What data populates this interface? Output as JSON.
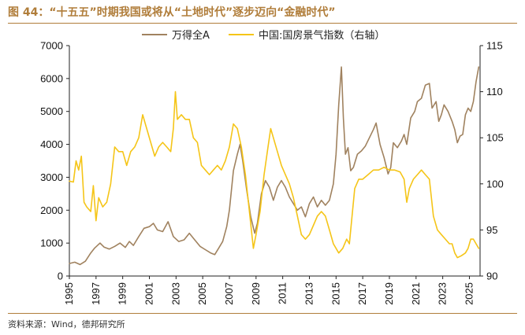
{
  "figure": {
    "title": "图 44：“十五五”时期我国或将从“土地时代”逐步迈向“金融时代”",
    "source": "资料来源：Wind，德邦研究所"
  },
  "colors": {
    "accent": "#b07d3a",
    "series_a": "#a0825f",
    "series_b": "#f5c518",
    "axis": "#222222"
  },
  "chart_data": {
    "type": "line",
    "xlim": [
      1995,
      2025.8
    ],
    "x_ticks": [
      "1995",
      "1997",
      "1999",
      "2001",
      "2003",
      "2005",
      "2007",
      "2009",
      "2011",
      "2013",
      "2015",
      "2017",
      "2019",
      "2021",
      "2023",
      "2025"
    ],
    "y_left": {
      "lim": [
        0,
        7000
      ],
      "ticks": [
        "0",
        "1000",
        "2000",
        "3000",
        "4000",
        "5000",
        "6000",
        "7000"
      ]
    },
    "y_right": {
      "lim": [
        90,
        115
      ],
      "ticks": [
        "90",
        "95",
        "100",
        "105",
        "110",
        "115"
      ]
    },
    "legend_position": "top-center",
    "series": [
      {
        "name": "万得全A",
        "axis": "left",
        "points": [
          [
            1995.0,
            380
          ],
          [
            1995.4,
            420
          ],
          [
            1995.8,
            350
          ],
          [
            1996.2,
            450
          ],
          [
            1996.6,
            700
          ],
          [
            1996.9,
            850
          ],
          [
            1997.3,
            1000
          ],
          [
            1997.6,
            880
          ],
          [
            1998.0,
            820
          ],
          [
            1998.4,
            900
          ],
          [
            1998.8,
            1000
          ],
          [
            1999.2,
            870
          ],
          [
            1999.5,
            1050
          ],
          [
            1999.8,
            930
          ],
          [
            2000.2,
            1200
          ],
          [
            2000.6,
            1450
          ],
          [
            2001.0,
            1500
          ],
          [
            2001.3,
            1600
          ],
          [
            2001.6,
            1400
          ],
          [
            2002.0,
            1350
          ],
          [
            2002.4,
            1650
          ],
          [
            2002.8,
            1200
          ],
          [
            2003.2,
            1050
          ],
          [
            2003.6,
            1100
          ],
          [
            2004.0,
            1300
          ],
          [
            2004.4,
            1100
          ],
          [
            2004.8,
            900
          ],
          [
            2005.2,
            800
          ],
          [
            2005.6,
            700
          ],
          [
            2005.9,
            650
          ],
          [
            2006.2,
            850
          ],
          [
            2006.5,
            1050
          ],
          [
            2006.8,
            1500
          ],
          [
            2007.0,
            2000
          ],
          [
            2007.3,
            3200
          ],
          [
            2007.6,
            3700
          ],
          [
            2007.8,
            4000
          ],
          [
            2008.0,
            3500
          ],
          [
            2008.3,
            2600
          ],
          [
            2008.6,
            1800
          ],
          [
            2008.9,
            1300
          ],
          [
            2009.1,
            1600
          ],
          [
            2009.4,
            2500
          ],
          [
            2009.7,
            2900
          ],
          [
            2010.0,
            2700
          ],
          [
            2010.3,
            2300
          ],
          [
            2010.6,
            2700
          ],
          [
            2010.9,
            2900
          ],
          [
            2011.2,
            2700
          ],
          [
            2011.5,
            2400
          ],
          [
            2011.8,
            2200
          ],
          [
            2012.1,
            2000
          ],
          [
            2012.4,
            2100
          ],
          [
            2012.7,
            1800
          ],
          [
            2013.0,
            2200
          ],
          [
            2013.3,
            2400
          ],
          [
            2013.6,
            2100
          ],
          [
            2013.9,
            2300
          ],
          [
            2014.2,
            2150
          ],
          [
            2014.5,
            2300
          ],
          [
            2014.8,
            2800
          ],
          [
            2015.0,
            3700
          ],
          [
            2015.2,
            5200
          ],
          [
            2015.4,
            6350
          ],
          [
            2015.55,
            4800
          ],
          [
            2015.7,
            3700
          ],
          [
            2015.9,
            3900
          ],
          [
            2016.1,
            3200
          ],
          [
            2016.3,
            3300
          ],
          [
            2016.6,
            3700
          ],
          [
            2016.9,
            3800
          ],
          [
            2017.2,
            3950
          ],
          [
            2017.5,
            4200
          ],
          [
            2017.8,
            4450
          ],
          [
            2018.0,
            4650
          ],
          [
            2018.3,
            4000
          ],
          [
            2018.6,
            3600
          ],
          [
            2018.9,
            3100
          ],
          [
            2019.1,
            3300
          ],
          [
            2019.3,
            4050
          ],
          [
            2019.6,
            3900
          ],
          [
            2019.9,
            4100
          ],
          [
            2020.1,
            4300
          ],
          [
            2020.3,
            4000
          ],
          [
            2020.6,
            4800
          ],
          [
            2020.9,
            5000
          ],
          [
            2021.1,
            5300
          ],
          [
            2021.4,
            5400
          ],
          [
            2021.7,
            5800
          ],
          [
            2022.0,
            5850
          ],
          [
            2022.2,
            5100
          ],
          [
            2022.5,
            5300
          ],
          [
            2022.7,
            4700
          ],
          [
            2022.9,
            4900
          ],
          [
            2023.1,
            5200
          ],
          [
            2023.4,
            5000
          ],
          [
            2023.7,
            4700
          ],
          [
            2023.9,
            4450
          ],
          [
            2024.1,
            4050
          ],
          [
            2024.3,
            4250
          ],
          [
            2024.5,
            4300
          ],
          [
            2024.7,
            4900
          ],
          [
            2024.9,
            5100
          ],
          [
            2025.1,
            5000
          ],
          [
            2025.3,
            5300
          ],
          [
            2025.5,
            5900
          ],
          [
            2025.7,
            6350
          ]
        ]
      },
      {
        "name": "中国:国房景气指数（右轴）",
        "axis": "right",
        "points": [
          [
            1995.0,
            100.3
          ],
          [
            1995.3,
            100.2
          ],
          [
            1995.5,
            102.5
          ],
          [
            1995.7,
            101.5
          ],
          [
            1995.9,
            103.0
          ],
          [
            1996.1,
            98.0
          ],
          [
            1996.3,
            97.5
          ],
          [
            1996.6,
            97.0
          ],
          [
            1996.8,
            99.8
          ],
          [
            1997.0,
            96.0
          ],
          [
            1997.2,
            98.5
          ],
          [
            1997.5,
            97.5
          ],
          [
            1997.8,
            98.0
          ],
          [
            1998.1,
            100.0
          ],
          [
            1998.4,
            104.0
          ],
          [
            1998.7,
            103.5
          ],
          [
            1999.0,
            103.5
          ],
          [
            1999.3,
            102.0
          ],
          [
            1999.6,
            103.5
          ],
          [
            1999.9,
            104.0
          ],
          [
            2000.2,
            105.0
          ],
          [
            2000.5,
            107.5
          ],
          [
            2000.8,
            106.0
          ],
          [
            2001.1,
            104.5
          ],
          [
            2001.4,
            103.0
          ],
          [
            2001.7,
            104.0
          ],
          [
            2002.0,
            104.5
          ],
          [
            2002.3,
            104.0
          ],
          [
            2002.6,
            103.5
          ],
          [
            2002.8,
            106.0
          ],
          [
            2002.95,
            110.0
          ],
          [
            2003.1,
            107.0
          ],
          [
            2003.4,
            107.5
          ],
          [
            2003.7,
            107.0
          ],
          [
            2004.0,
            107.0
          ],
          [
            2004.3,
            105.0
          ],
          [
            2004.6,
            104.5
          ],
          [
            2004.9,
            102.0
          ],
          [
            2005.2,
            101.5
          ],
          [
            2005.5,
            101.0
          ],
          [
            2005.8,
            101.5
          ],
          [
            2006.1,
            102.0
          ],
          [
            2006.4,
            101.5
          ],
          [
            2006.7,
            102.5
          ],
          [
            2007.0,
            104.0
          ],
          [
            2007.3,
            106.5
          ],
          [
            2007.6,
            106.0
          ],
          [
            2007.9,
            104.0
          ],
          [
            2008.2,
            101.0
          ],
          [
            2008.5,
            97.0
          ],
          [
            2008.8,
            93.0
          ],
          [
            2009.0,
            94.5
          ],
          [
            2009.3,
            97.0
          ],
          [
            2009.6,
            101.0
          ],
          [
            2009.9,
            104.0
          ],
          [
            2010.1,
            106.0
          ],
          [
            2010.3,
            105.0
          ],
          [
            2010.6,
            103.5
          ],
          [
            2010.9,
            102.0
          ],
          [
            2011.2,
            101.0
          ],
          [
            2011.5,
            100.0
          ],
          [
            2011.8,
            98.5
          ],
          [
            2012.1,
            96.5
          ],
          [
            2012.4,
            94.5
          ],
          [
            2012.7,
            94.0
          ],
          [
            2013.0,
            94.5
          ],
          [
            2013.3,
            95.5
          ],
          [
            2013.6,
            96.5
          ],
          [
            2013.9,
            97.0
          ],
          [
            2014.2,
            96.5
          ],
          [
            2014.5,
            95.0
          ],
          [
            2014.8,
            93.5
          ],
          [
            2015.0,
            93.0
          ],
          [
            2015.2,
            92.5
          ],
          [
            2015.5,
            93.0
          ],
          [
            2015.8,
            94.0
          ],
          [
            2016.0,
            93.5
          ],
          [
            2016.2,
            96.5
          ],
          [
            2016.4,
            99.5
          ],
          [
            2016.7,
            100.5
          ],
          [
            2017.0,
            100.5
          ],
          [
            2017.4,
            101.0
          ],
          [
            2017.8,
            101.5
          ],
          [
            2018.2,
            101.5
          ],
          [
            2018.6,
            101.8
          ],
          [
            2019.0,
            101.5
          ],
          [
            2019.4,
            101.5
          ],
          [
            2019.8,
            101.3
          ],
          [
            2020.1,
            100.5
          ],
          [
            2020.3,
            98.0
          ],
          [
            2020.5,
            99.5
          ],
          [
            2020.8,
            100.5
          ],
          [
            2021.1,
            101.0
          ],
          [
            2021.4,
            101.5
          ],
          [
            2021.7,
            101.0
          ],
          [
            2022.0,
            100.5
          ],
          [
            2022.3,
            96.5
          ],
          [
            2022.6,
            95.0
          ],
          [
            2022.9,
            94.5
          ],
          [
            2023.2,
            94.0
          ],
          [
            2023.5,
            93.5
          ],
          [
            2023.7,
            93.5
          ],
          [
            2023.9,
            92.5
          ],
          [
            2024.1,
            92.0
          ],
          [
            2024.4,
            92.2
          ],
          [
            2024.7,
            92.5
          ],
          [
            2024.9,
            93.0
          ],
          [
            2025.1,
            94.0
          ],
          [
            2025.3,
            94.0
          ],
          [
            2025.5,
            93.5
          ],
          [
            2025.7,
            93.0
          ]
        ]
      }
    ]
  }
}
